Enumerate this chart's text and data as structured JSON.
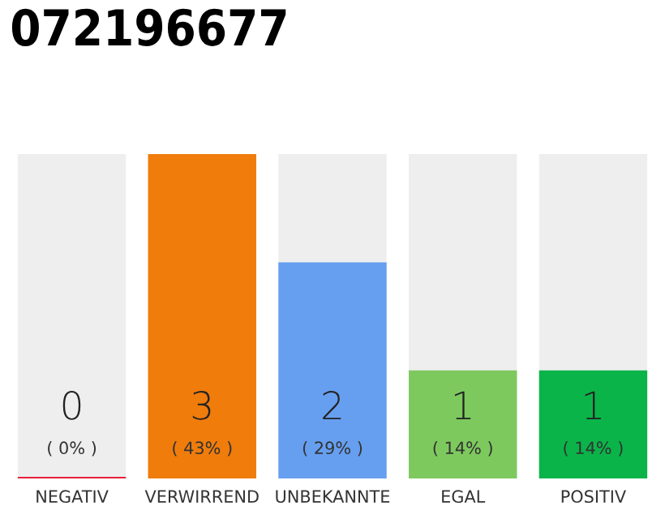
{
  "chart_data": {
    "type": "bar",
    "title": "072196677",
    "categories": [
      "NEGATIV",
      "VERWIRREND",
      "UNBEKANNTE",
      "EGAL",
      "POSITIV"
    ],
    "values": [
      0,
      3,
      2,
      1,
      1
    ],
    "colors": [
      "#e8203c",
      "#f07c0c",
      "#669ff0",
      "#7dc95e",
      "#0ab449"
    ],
    "value_labels": [
      "0\n( 0% )",
      "3\n( 43% )",
      "2\n( 29% )",
      "1\n( 14% )",
      "1\n( 14% )"
    ],
    "grid": false,
    "legend": false
  }
}
